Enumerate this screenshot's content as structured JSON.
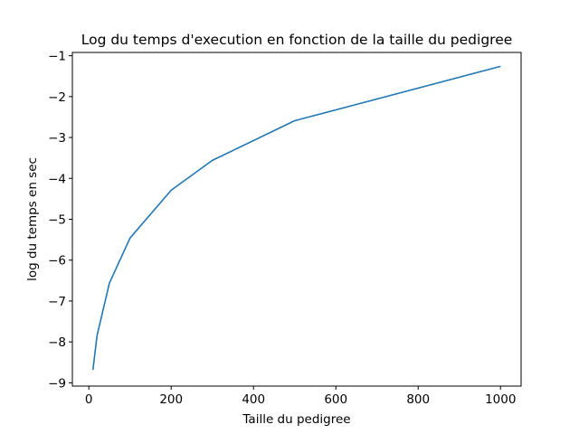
{
  "chart_data": {
    "type": "line",
    "title": "Log du temps d'execution en fonction de la taille du pedigree",
    "xlabel": "Taille du pedigree",
    "ylabel": "log du temps en sec",
    "xlim": [
      -40,
      1050
    ],
    "ylim": [
      -9.08,
      -0.92
    ],
    "xticks": [
      0,
      200,
      400,
      600,
      800,
      1000
    ],
    "xtick_labels": [
      "0",
      "200",
      "400",
      "600",
      "800",
      "1000"
    ],
    "yticks": [
      -9,
      -8,
      -7,
      -6,
      -5,
      -4,
      -3,
      -2,
      -1
    ],
    "ytick_labels": [
      "−9",
      "−8",
      "−7",
      "−6",
      "−5",
      "−4",
      "−3",
      "−2",
      "−1"
    ],
    "grid": false,
    "series": [
      {
        "color": "#1f77b4",
        "x": [
          10,
          20,
          50,
          100,
          200,
          300,
          500,
          1000
        ],
        "y": [
          -8.68,
          -7.84,
          -6.56,
          -5.46,
          -4.29,
          -3.56,
          -2.59,
          -1.26
        ]
      }
    ]
  }
}
